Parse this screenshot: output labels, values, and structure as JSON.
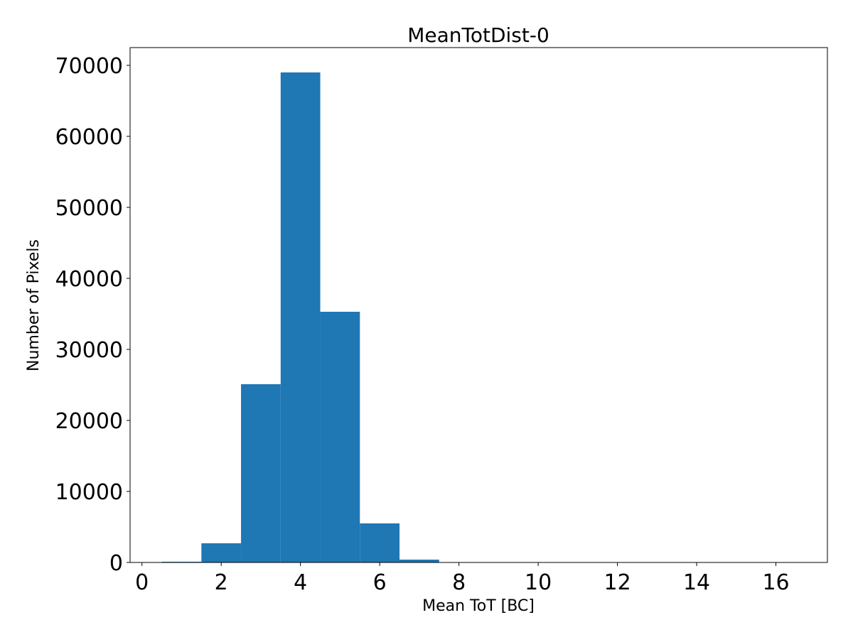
{
  "chart_data": {
    "type": "bar",
    "title": "MeanTotDist-0",
    "xlabel": "Mean ToT [BC]",
    "ylabel": "Number of Pixels",
    "bin_edges": [
      0.5,
      1.5,
      2.5,
      3.5,
      4.5,
      5.5,
      6.5,
      7.5,
      8.5,
      9.5,
      10.5,
      11.5,
      12.5,
      13.5,
      14.5,
      15.5,
      16.5
    ],
    "values": [
      100,
      2700,
      25100,
      69000,
      35300,
      5500,
      400,
      0,
      0,
      0,
      0,
      0,
      0,
      0,
      0,
      0
    ],
    "xlim": [
      -0.3,
      17.3
    ],
    "ylim": [
      0,
      72500
    ],
    "xticks": [
      0,
      2,
      4,
      6,
      8,
      10,
      12,
      14,
      16
    ],
    "xtick_labels": [
      "0",
      "2",
      "4",
      "6",
      "8",
      "10",
      "12",
      "14",
      "16"
    ],
    "yticks": [
      0,
      10000,
      20000,
      30000,
      40000,
      50000,
      60000,
      70000
    ],
    "ytick_labels": [
      "0",
      "10000",
      "20000",
      "30000",
      "40000",
      "50000",
      "60000",
      "70000"
    ],
    "grid": false,
    "bar_color": "#1f77b4"
  }
}
